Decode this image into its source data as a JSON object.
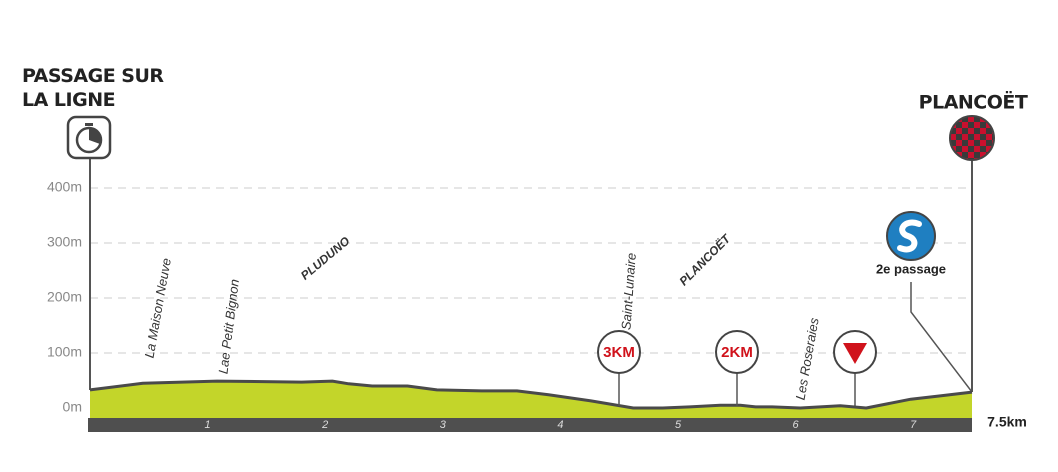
{
  "chart_data": {
    "type": "area",
    "x": [
      0,
      0.45,
      1.08,
      1.8,
      2.06,
      2.2,
      2.4,
      2.7,
      2.95,
      3.33,
      3.63,
      3.9,
      4.26,
      4.62,
      4.8,
      4.87,
      5.1,
      5.36,
      5.53,
      5.66,
      5.8,
      6.04,
      6.21,
      6.38,
      6.6,
      6.98,
      7.23,
      7.5
    ],
    "values": [
      33,
      45,
      49,
      47,
      49,
      44,
      40,
      40,
      33,
      31,
      31,
      24,
      13,
      0,
      0,
      0,
      2,
      5,
      5,
      2,
      2,
      0,
      2,
      4,
      0,
      16,
      22,
      29
    ],
    "color": "#c3d52a",
    "line_color": "#4a4a4a",
    "xlim": [
      0,
      7.5
    ],
    "ylim": [
      0,
      400
    ],
    "xticks": [
      1,
      2,
      3,
      4,
      5,
      6,
      7,
      {
        "value": 7.5,
        "label": "7.5km"
      }
    ],
    "yticks": [
      {
        "value": 0,
        "label": "0m"
      },
      {
        "value": 100,
        "label": "100m"
      },
      {
        "value": 200,
        "label": "200m"
      },
      {
        "value": 300,
        "label": "300m"
      },
      {
        "value": 400,
        "label": "400m"
      }
    ],
    "grid": true,
    "places": [
      "La Maison Neuve",
      "Lae Petit Bignon",
      "PLUDUNO",
      "Saint-Lunaire",
      "PLANCOËT",
      "Les Roseraies"
    ],
    "start": "PASSAGE SUR LA LIGNE",
    "finish": "PLANCOËT",
    "km_markers": [
      "3KM",
      "2KM"
    ],
    "sprint": "2e passage"
  }
}
